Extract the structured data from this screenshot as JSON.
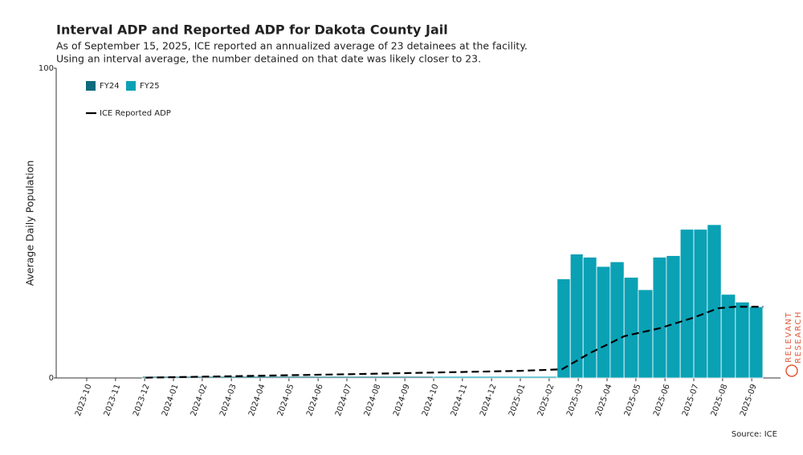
{
  "chart_data": {
    "type": "histogram",
    "title": "Interval ADP and Reported ADP for Dakota County Jail",
    "subtitle": [
      "As of September 15, 2025, ICE reported an annualized average of 23 detainees at the facility.",
      "Using an interval average, the number detained on that date was likely closer to 23."
    ],
    "y_label": "Average Daily Population",
    "source": "Source: ICE",
    "logo": [
      "RELEVANT",
      "RESEARCH"
    ],
    "xlim": [
      2023.75,
      2025.75
    ],
    "xticks": [
      {
        "value": 2023.75,
        "label": "2023-10"
      },
      {
        "value": 2023.833,
        "label": "2023-11"
      },
      {
        "value": 2023.917,
        "label": "2023-12"
      },
      {
        "value": 2024.0,
        "label": "2024-01"
      },
      {
        "value": 2024.083,
        "label": "2024-02"
      },
      {
        "value": 2024.167,
        "label": "2024-03"
      },
      {
        "value": 2024.25,
        "label": "2024-04"
      },
      {
        "value": 2024.333,
        "label": "2024-05"
      },
      {
        "value": 2024.417,
        "label": "2024-06"
      },
      {
        "value": 2024.5,
        "label": "2024-07"
      },
      {
        "value": 2024.583,
        "label": "2024-08"
      },
      {
        "value": 2024.667,
        "label": "2024-09"
      },
      {
        "value": 2024.75,
        "label": "2024-10"
      },
      {
        "value": 2024.833,
        "label": "2024-11"
      },
      {
        "value": 2024.917,
        "label": "2024-12"
      },
      {
        "value": 2025.0,
        "label": "2025-01"
      },
      {
        "value": 2025.083,
        "label": "2025-02"
      },
      {
        "value": 2025.167,
        "label": "2025-03"
      },
      {
        "value": 2025.25,
        "label": "2025-04"
      },
      {
        "value": 2025.333,
        "label": "2025-05"
      },
      {
        "value": 2025.417,
        "label": "2025-06"
      },
      {
        "value": 2025.5,
        "label": "2025-07"
      },
      {
        "value": 2025.583,
        "label": "2025-08"
      },
      {
        "value": 2025.667,
        "label": "2025-09"
      }
    ],
    "ylim": [
      0,
      100
    ],
    "yticks": [
      0,
      100
    ],
    "series": [
      {
        "name": "FY24",
        "color": "#0d6b7c",
        "bins": [
          2023.91,
          2024.75
        ],
        "values": [
          0.5
        ]
      },
      {
        "name": "FY25",
        "color": "#0aa1b5",
        "bins": [
          2024.75,
          2025.106,
          2025.144,
          2025.181,
          2025.22,
          2025.259,
          2025.299,
          2025.34,
          2025.382,
          2025.421,
          2025.461,
          2025.5,
          2025.539,
          2025.579,
          2025.62,
          2025.66,
          2025.699
        ],
        "values": [
          0.5,
          32,
          40,
          39,
          36,
          37.5,
          32.5,
          28.5,
          39,
          39.5,
          48,
          48,
          49.5,
          27,
          24.5,
          23
        ]
      }
    ],
    "line": {
      "name": "ICE Reported ADP",
      "color": "#000000",
      "x": [
        2023.92,
        2024.5,
        2025.0,
        2025.12,
        2025.2,
        2025.3,
        2025.4,
        2025.5,
        2025.57,
        2025.62,
        2025.7
      ],
      "values": [
        0.1,
        1.2,
        2.3,
        2.8,
        8,
        13.5,
        16,
        19.5,
        22.5,
        23,
        23
      ]
    }
  }
}
